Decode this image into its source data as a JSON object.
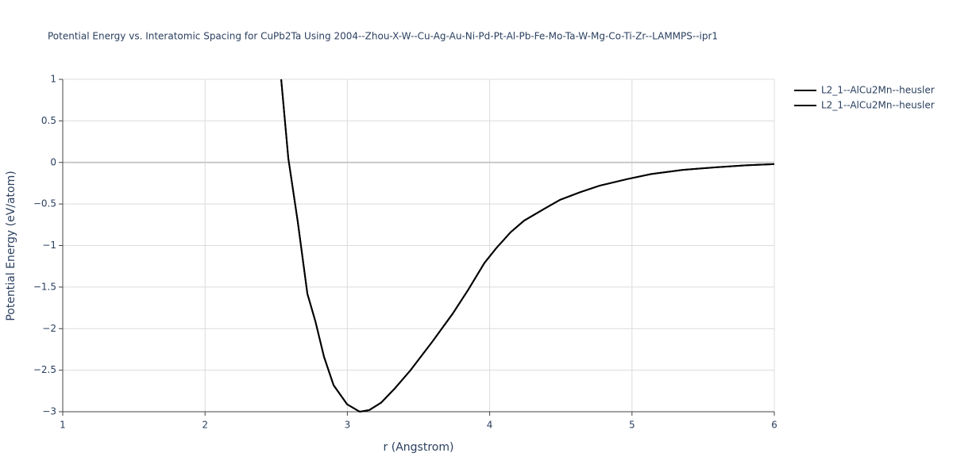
{
  "chart_data": {
    "type": "line",
    "title": "Potential Energy vs. Interatomic Spacing for CuPb2Ta Using 2004--Zhou-X-W--Cu-Ag-Au-Ni-Pd-Pt-Al-Pb-Fe-Mo-Ta-W-Mg-Co-Ti-Zr--LAMMPS--ipr1",
    "x_label": "r (Angstrom)",
    "y_label": "Potential Energy (eV/atom)",
    "xlim": [
      1,
      6
    ],
    "ylim": [
      -3,
      1
    ],
    "xticks": [
      1,
      2,
      3,
      4,
      5,
      6
    ],
    "yticks": [
      {
        "value": -3,
        "label": "−3"
      },
      {
        "value": -2.5,
        "label": "−2.5"
      },
      {
        "value": -2,
        "label": "−2"
      },
      {
        "value": -1.5,
        "label": "−1.5"
      },
      {
        "value": -1,
        "label": "−1"
      },
      {
        "value": -0.5,
        "label": "−0.5"
      },
      0,
      0.5,
      1
    ],
    "grid": true,
    "series": [
      {
        "name": "L2_1--AlCu2Mn--heusler",
        "color": "#000000",
        "x": [
          2.535,
          2.585,
          2.652,
          2.719,
          2.775,
          2.836,
          2.903,
          2.998,
          3.087,
          3.154,
          3.238,
          3.333,
          3.444,
          3.6,
          3.74,
          3.85,
          3.963,
          4.047,
          4.147,
          4.242,
          4.382,
          4.494,
          4.633,
          4.772,
          4.968,
          5.135,
          5.358,
          5.58,
          5.8,
          6.0
        ],
        "values": [
          1,
          0.05,
          -0.72,
          -1.58,
          -1.91,
          -2.34,
          -2.68,
          -2.91,
          -3.0,
          -2.98,
          -2.89,
          -2.72,
          -2.5,
          -2.15,
          -1.82,
          -1.53,
          -1.21,
          -1.03,
          -0.84,
          -0.7,
          -0.56,
          -0.45,
          -0.36,
          -0.28,
          -0.2,
          -0.14,
          -0.09,
          -0.06,
          -0.035,
          -0.02
        ]
      },
      {
        "name": "L2_1--AlCu2Mn--heusler",
        "color": "#000000",
        "x": [
          2.535,
          2.585,
          2.652,
          2.719,
          2.775,
          2.836,
          2.903,
          2.998,
          3.087,
          3.154,
          3.238,
          3.333,
          3.444,
          3.6,
          3.74,
          3.85,
          3.963,
          4.047,
          4.147,
          4.242,
          4.382,
          4.494,
          4.633,
          4.772,
          4.968,
          5.135,
          5.358,
          5.58,
          5.8,
          6.0
        ],
        "values": [
          1,
          0.05,
          -0.72,
          -1.58,
          -1.91,
          -2.34,
          -2.68,
          -2.91,
          -3.0,
          -2.98,
          -2.89,
          -2.72,
          -2.5,
          -2.15,
          -1.82,
          -1.53,
          -1.21,
          -1.03,
          -0.84,
          -0.7,
          -0.56,
          -0.45,
          -0.36,
          -0.28,
          -0.2,
          -0.14,
          -0.09,
          -0.06,
          -0.035,
          -0.02
        ]
      }
    ]
  }
}
